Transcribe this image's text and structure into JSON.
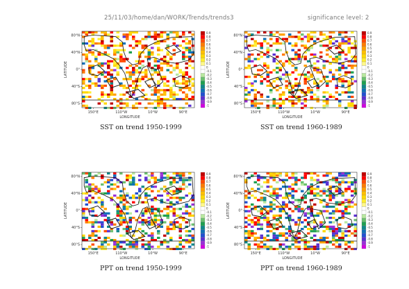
{
  "header": {
    "path": "25/11/03/home/dan/WORK/Trends/trends3",
    "significance": "significance level: 2"
  },
  "colorbar": {
    "labels": [
      "0.9",
      "0.8",
      "0.7",
      "0.6",
      "0.5",
      "0.4",
      "0.3",
      "0.2",
      "0.1",
      "0",
      "-0.1",
      "-0.2",
      "-0.3",
      "-0.4",
      "-0.5",
      "-0.6",
      "-0.7",
      "-0.8",
      "-0.9",
      "-1"
    ],
    "colors": [
      "#c00000",
      "#ff0000",
      "#ff4a00",
      "#ff7a00",
      "#ffa000",
      "#ffc000",
      "#ffd800",
      "#ffee30",
      "#fff88a",
      "#ffffff",
      "#ffffff",
      "#b8e8a0",
      "#6cc070",
      "#1fa050",
      "#108888",
      "#1070b8",
      "#2050d0",
      "#5a30d0",
      "#9a30d8",
      "#d000e0"
    ]
  },
  "chart_data": [
    {
      "type": "heatmap",
      "title": "SST on trend 1950-1999",
      "xlabel": "LONGITUDE",
      "ylabel": "LATITUDE",
      "x_ticks": [
        "150°E",
        "110°W",
        "10°W",
        "90°E"
      ],
      "y_ticks": [
        "80°N",
        "40°N",
        "0°",
        "40°S",
        "80°S"
      ],
      "value_range": [
        -1,
        0.9
      ]
    },
    {
      "type": "heatmap",
      "title": "SST on trend 1960-1989",
      "xlabel": "LONGITUDE",
      "ylabel": "LATITUDE",
      "x_ticks": [
        "150°E",
        "110°W",
        "10°W",
        "90°E"
      ],
      "y_ticks": [
        "80°N",
        "40°N",
        "0°",
        "40°S",
        "80°S"
      ],
      "value_range": [
        -1,
        0.9
      ]
    },
    {
      "type": "heatmap",
      "title": "PPT on trend 1950-1999",
      "xlabel": "LONGITUDE",
      "ylabel": "LATITUDE",
      "x_ticks": [
        "150°E",
        "110°W",
        "10°W",
        "90°E"
      ],
      "y_ticks": [
        "80°N",
        "40°N",
        "0°",
        "40°S",
        "80°S"
      ],
      "value_range": [
        -1,
        0.9
      ]
    },
    {
      "type": "heatmap",
      "title": "PPT on trend 1960-1989",
      "xlabel": "LONGITUDE",
      "ylabel": "LATITUDE",
      "x_ticks": [
        "150°E",
        "110°W",
        "10°W",
        "90°E"
      ],
      "y_ticks": [
        "80°N",
        "40°N",
        "0°",
        "40°S",
        "80°S"
      ],
      "value_range": [
        -1,
        0.9
      ]
    }
  ]
}
